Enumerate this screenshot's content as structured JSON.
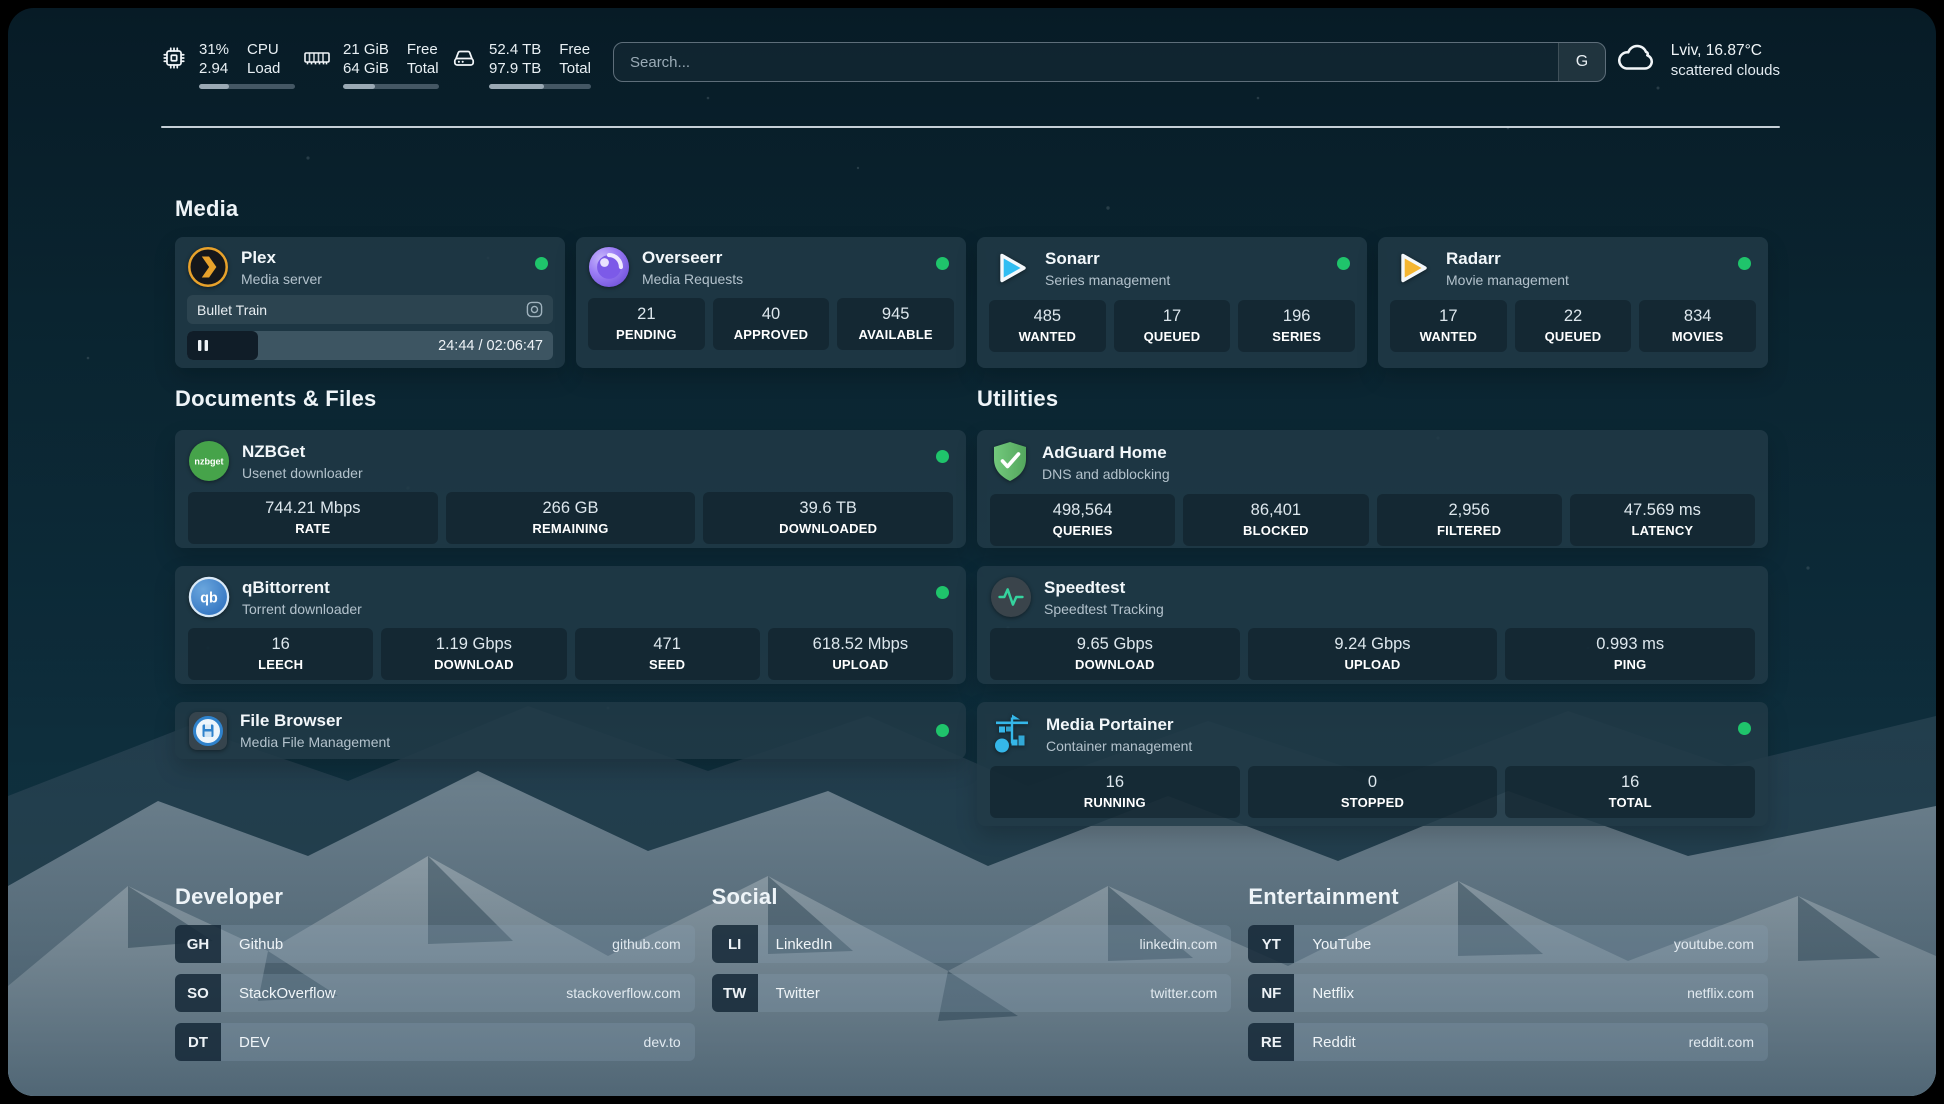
{
  "topbar": {
    "cpu": {
      "icon": "cpu-chip-icon",
      "values": [
        "31%",
        "2.94"
      ],
      "labels": [
        "CPU",
        "Load"
      ],
      "progress_percent": 31
    },
    "memory": {
      "icon": "ram-icon",
      "values": [
        "21 GiB",
        "64 GiB"
      ],
      "labels": [
        "Free",
        "Total"
      ],
      "progress_percent": 33
    },
    "disk": {
      "icon": "hard-drive-icon",
      "values": [
        "52.4 TB",
        "97.9 TB"
      ],
      "labels": [
        "Free",
        "Total"
      ],
      "progress_percent": 54
    },
    "search": {
      "placeholder": "Search...",
      "provider_button": "G"
    },
    "weather": {
      "icon": "cloud-icon",
      "line1": "Lviv, 16.87°C",
      "line2": "scattered clouds"
    }
  },
  "media": {
    "title": "Media",
    "plex": {
      "name": "Plex",
      "description": "Media server",
      "online": true,
      "now_playing": "Bullet Train",
      "time_display": "24:44 / 02:06:47",
      "progress_percent": 19.4
    },
    "overseerr": {
      "name": "Overseerr",
      "description": "Media Requests",
      "online": true,
      "stats": [
        {
          "value": "21",
          "label": "PENDING"
        },
        {
          "value": "40",
          "label": "APPROVED"
        },
        {
          "value": "945",
          "label": "AVAILABLE"
        }
      ]
    },
    "sonarr": {
      "name": "Sonarr",
      "description": "Series management",
      "online": true,
      "stats": [
        {
          "value": "485",
          "label": "WANTED"
        },
        {
          "value": "17",
          "label": "QUEUED"
        },
        {
          "value": "196",
          "label": "SERIES"
        }
      ]
    },
    "radarr": {
      "name": "Radarr",
      "description": "Movie management",
      "online": true,
      "stats": [
        {
          "value": "17",
          "label": "WANTED"
        },
        {
          "value": "22",
          "label": "QUEUED"
        },
        {
          "value": "834",
          "label": "MOVIES"
        }
      ]
    }
  },
  "documents": {
    "title": "Documents & Files",
    "nzbget": {
      "name": "NZBGet",
      "description": "Usenet downloader",
      "online": true,
      "stats": [
        {
          "value": "744.21 Mbps",
          "label": "RATE"
        },
        {
          "value": "266 GB",
          "label": "REMAINING"
        },
        {
          "value": "39.6 TB",
          "label": "DOWNLOADED"
        }
      ]
    },
    "qbittorrent": {
      "name": "qBittorrent",
      "description": "Torrent downloader",
      "online": true,
      "stats": [
        {
          "value": "16",
          "label": "LEECH"
        },
        {
          "value": "1.19 Gbps",
          "label": "DOWNLOAD"
        },
        {
          "value": "471",
          "label": "SEED"
        },
        {
          "value": "618.52 Mbps",
          "label": "UPLOAD"
        }
      ]
    },
    "filebrowser": {
      "name": "File Browser",
      "description": "Media File Management",
      "online": true
    }
  },
  "utilities": {
    "title": "Utilities",
    "adguard": {
      "name": "AdGuard Home",
      "description": "DNS and adblocking",
      "stats": [
        {
          "value": "498,564",
          "label": "QUERIES"
        },
        {
          "value": "86,401",
          "label": "BLOCKED"
        },
        {
          "value": "2,956",
          "label": "FILTERED"
        },
        {
          "value": "47.569 ms",
          "label": "LATENCY"
        }
      ]
    },
    "speedtest": {
      "name": "Speedtest",
      "description": "Speedtest Tracking",
      "stats": [
        {
          "value": "9.65 Gbps",
          "label": "DOWNLOAD"
        },
        {
          "value": "9.24 Gbps",
          "label": "UPLOAD"
        },
        {
          "value": "0.993 ms",
          "label": "PING"
        }
      ]
    },
    "portainer": {
      "name": "Media Portainer",
      "description": "Container management",
      "online": true,
      "stats": [
        {
          "value": "16",
          "label": "RUNNING"
        },
        {
          "value": "0",
          "label": "STOPPED"
        },
        {
          "value": "16",
          "label": "TOTAL"
        }
      ]
    }
  },
  "bookmarks": [
    {
      "title": "Developer",
      "items": [
        {
          "abbr": "GH",
          "name": "Github",
          "url": "github.com"
        },
        {
          "abbr": "SO",
          "name": "StackOverflow",
          "url": "stackoverflow.com"
        },
        {
          "abbr": "DT",
          "name": "DEV",
          "url": "dev.to"
        }
      ]
    },
    {
      "title": "Social",
      "items": [
        {
          "abbr": "LI",
          "name": "LinkedIn",
          "url": "linkedin.com"
        },
        {
          "abbr": "TW",
          "name": "Twitter",
          "url": "twitter.com"
        }
      ]
    },
    {
      "title": "Entertainment",
      "items": [
        {
          "abbr": "YT",
          "name": "YouTube",
          "url": "youtube.com"
        },
        {
          "abbr": "NF",
          "name": "Netflix",
          "url": "netflix.com"
        },
        {
          "abbr": "RE",
          "name": "Reddit",
          "url": "reddit.com"
        }
      ]
    }
  ],
  "icons": {
    "nzbget_text": "nzbget",
    "qbittorrent_text": "qb",
    "online_dot_color": "#1fc46b",
    "plex_accent": "#e8a22b",
    "sonarr_accent": "#30bdf2",
    "radarr_accent": "#f5b631",
    "overseerr_accent": "#8b5cf6",
    "nzbget_accent": "#46a34a",
    "qbittorrent_accent": "#2d6fbe",
    "adguard_accent": "#53a65d",
    "speedtest_pulse": "#35d39e",
    "portainer_accent": "#35b7e9",
    "filebrowser_accent": "#2f82cc"
  }
}
